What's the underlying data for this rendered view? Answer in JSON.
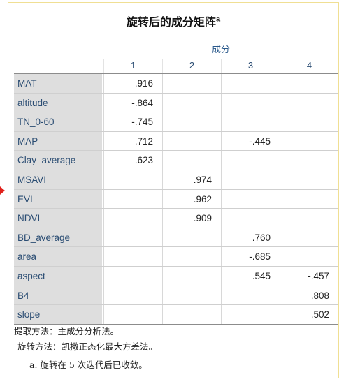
{
  "title": "旋转后的成分矩阵",
  "title_superscript": "a",
  "group_header": "成分",
  "columns": [
    "1",
    "2",
    "3",
    "4"
  ],
  "rows": [
    {
      "label": "MAT",
      "values": [
        ".916",
        "",
        "",
        ""
      ]
    },
    {
      "label": "altitude",
      "values": [
        "-.864",
        "",
        "",
        ""
      ]
    },
    {
      "label": "TN_0-60",
      "values": [
        "-.745",
        "",
        "",
        ""
      ]
    },
    {
      "label": "MAP",
      "values": [
        ".712",
        "",
        "-.445",
        ""
      ]
    },
    {
      "label": "Clay_average",
      "values": [
        ".623",
        "",
        "",
        ""
      ]
    },
    {
      "label": "MSAVI",
      "values": [
        "",
        ".974",
        "",
        ""
      ]
    },
    {
      "label": "EVI",
      "values": [
        "",
        ".962",
        "",
        ""
      ]
    },
    {
      "label": "NDVI",
      "values": [
        "",
        ".909",
        "",
        ""
      ]
    },
    {
      "label": "BD_average",
      "values": [
        "",
        "",
        ".760",
        ""
      ]
    },
    {
      "label": "area",
      "values": [
        "",
        "",
        "-.685",
        ""
      ]
    },
    {
      "label": "aspect",
      "values": [
        "",
        "",
        ".545",
        "-.457"
      ]
    },
    {
      "label": "B4",
      "values": [
        "",
        "",
        "",
        ".808"
      ]
    },
    {
      "label": "slope",
      "values": [
        "",
        "",
        "",
        ".502"
      ]
    }
  ],
  "footnotes": {
    "extraction": "提取方法：主成分分析法。",
    "rotation": "旋转方法：凯撒正态化最大方差法。",
    "note_a": "a. 旋转在 5 次迭代后已收敛。"
  },
  "colors": {
    "frame_border": "#f0df93",
    "label_background": "#dedede",
    "header_text": "#2b4d73",
    "row_marker": "#e0201b"
  }
}
